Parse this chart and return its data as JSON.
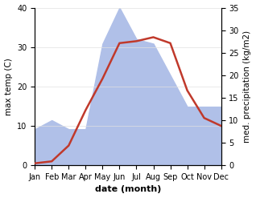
{
  "months": [
    "Jan",
    "Feb",
    "Mar",
    "Apr",
    "May",
    "Jun",
    "Jul",
    "Aug",
    "Sep",
    "Oct",
    "Nov",
    "Dec"
  ],
  "temperature": [
    0.5,
    1.0,
    5.0,
    14.0,
    22.0,
    31.0,
    31.5,
    32.5,
    31.0,
    19.0,
    12.0,
    10.0
  ],
  "precipitation": [
    8.0,
    10.0,
    8.0,
    8.0,
    27.0,
    35.0,
    28.0,
    27.0,
    20.0,
    13.0,
    13.0,
    13.0
  ],
  "temp_color": "#c0392b",
  "precip_color": "#b0c0e8",
  "ylabel_left": "max temp (C)",
  "ylabel_right": "med. precipitation (kg/m2)",
  "xlabel": "date (month)",
  "ylim_left": [
    0,
    40
  ],
  "ylim_right": [
    0,
    35
  ],
  "yticks_left": [
    0,
    10,
    20,
    30,
    40
  ],
  "yticks_right": [
    0,
    5,
    10,
    15,
    20,
    25,
    30,
    35
  ],
  "bg_color": "#ffffff",
  "grid_color": "#e0e0e0",
  "tick_fontsize": 7,
  "label_fontsize": 7.5,
  "xlabel_fontsize": 8
}
